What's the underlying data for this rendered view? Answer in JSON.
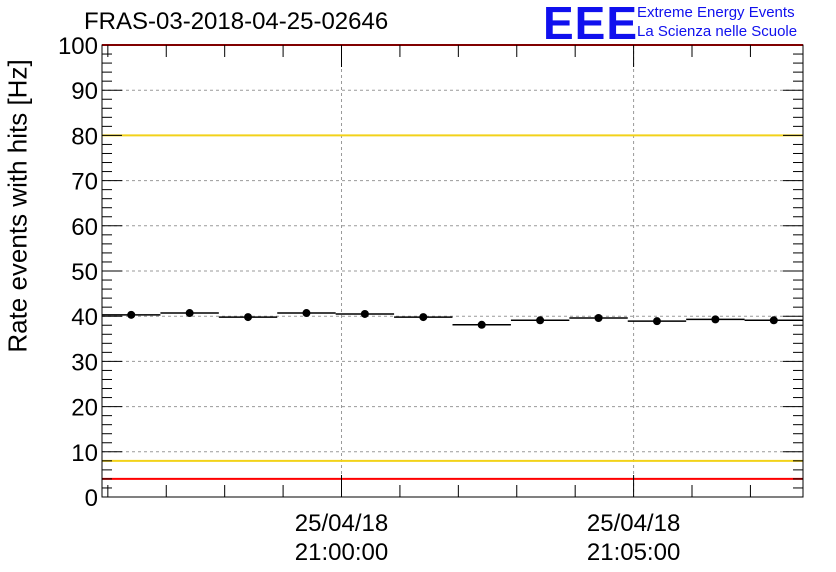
{
  "title": "FRAS-03-2018-04-25-02646",
  "logo": {
    "mark": "EEE",
    "line1": "Extreme Energy Events",
    "line2": "La Scienza nelle Scuole"
  },
  "colors": {
    "threshold_red": "#ff0000",
    "threshold_yellow": "#f2d21a",
    "logo_blue": "#1010ee",
    "grid": "#9a9a9a",
    "marker": "#000000"
  },
  "chart_data": {
    "type": "scatter",
    "title": "FRAS-03-2018-04-25-02646",
    "xlabel": "",
    "ylabel": "Rate events with hits [Hz]",
    "ylim": [
      0,
      100
    ],
    "xlim_minutes": [
      -4.1,
      7.9
    ],
    "grid": true,
    "y_ticks": [
      0,
      10,
      20,
      30,
      40,
      50,
      60,
      70,
      80,
      90,
      100
    ],
    "x_tick_labels": [
      {
        "at_minutes": 0,
        "date": "25/04/18",
        "time": "21:00:00"
      },
      {
        "at_minutes": 5,
        "date": "25/04/18",
        "time": "21:05:00"
      }
    ],
    "bin_width_minutes": 1,
    "series": [
      {
        "name": "rate",
        "x_minutes": [
          -3.6,
          -2.6,
          -1.6,
          -0.6,
          0.4,
          1.4,
          2.4,
          3.4,
          4.4,
          5.4,
          6.4,
          7.4
        ],
        "values": [
          40.3,
          40.7,
          39.8,
          40.7,
          40.5,
          39.8,
          38.1,
          39.1,
          39.6,
          38.9,
          39.3,
          39.1
        ]
      }
    ],
    "thresholds": [
      {
        "value": 80,
        "color": "yellow"
      },
      {
        "value": 8,
        "color": "yellow"
      },
      {
        "value": 4,
        "color": "red"
      },
      {
        "value": 100,
        "color": "red"
      }
    ]
  }
}
